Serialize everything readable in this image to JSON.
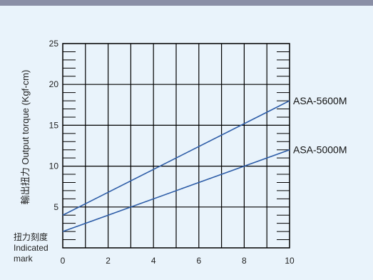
{
  "chart_data": {
    "type": "line",
    "ylabel": "輸出扭力 Output torque (Kgf-cm)",
    "xlabel_lines": [
      "扭力刻度",
      "Indicated",
      "mark"
    ],
    "xlim": [
      0,
      10
    ],
    "ylim": [
      0,
      25
    ],
    "x_ticks": [
      0,
      2,
      4,
      6,
      8,
      10
    ],
    "y_ticks": [
      5,
      10,
      15,
      20,
      25
    ],
    "grid": true,
    "series": [
      {
        "name": "ASA-5600M",
        "x": [
          0,
          10
        ],
        "values": [
          4,
          18
        ],
        "color": "#2f5ea8"
      },
      {
        "name": "ASA-5000M",
        "x": [
          0,
          10
        ],
        "values": [
          2,
          12
        ],
        "color": "#2f5ea8"
      }
    ]
  },
  "colors": {
    "background": "#e9f3fb",
    "top_band": "#8a8fa6",
    "grid": "#000000",
    "line": "#2f5ea8"
  }
}
